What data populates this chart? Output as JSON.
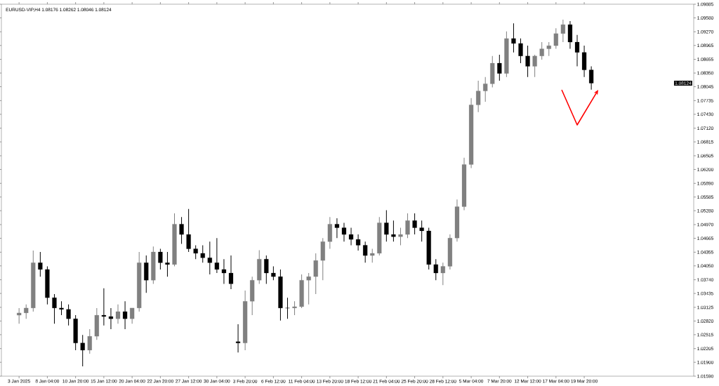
{
  "chart_data": {
    "type": "candlestick",
    "title": "EURUSD-VIP,H4  1.08176 1.08262 1.08046 1.08124",
    "categories": [
      "3 Jan 2025",
      null,
      null,
      null,
      "8 Jan 04:00",
      null,
      null,
      null,
      "10 Jan 20:00",
      null,
      null,
      null,
      "15 Jan 12:00",
      null,
      null,
      null,
      "20 Jan 04:00",
      null,
      null,
      null,
      "22 Jan 20:00",
      null,
      null,
      null,
      "27 Jan 12:00",
      null,
      null,
      null,
      "30 Jan 04:00",
      null,
      null,
      null,
      "3 Feb 20:00",
      null,
      null,
      null,
      "6 Feb 12:00",
      null,
      null,
      null,
      "11 Feb 04:00",
      null,
      null,
      null,
      "13 Feb 20:00",
      null,
      null,
      null,
      "18 Feb 12:00",
      null,
      null,
      null,
      "21 Feb 04:00",
      null,
      null,
      null,
      "25 Feb 20:00",
      null,
      null,
      null,
      "28 Feb 12:00",
      null,
      null,
      null,
      "5 Mar 04:00",
      null,
      null,
      null,
      "7 Mar 20:00",
      null,
      null,
      null,
      "12 Mar 12:00",
      null,
      null,
      null,
      "17 Mar 04:00",
      null,
      null,
      null,
      "19 Mar 20:00",
      null,
      null,
      null,
      null,
      null,
      null,
      null,
      null,
      null,
      null,
      null,
      null,
      null,
      null,
      null
    ],
    "ohlc": [
      [
        1.0295,
        1.0311,
        1.0276,
        1.03
      ],
      [
        1.03,
        1.0319,
        1.0287,
        1.0311
      ],
      [
        1.0311,
        1.0439,
        1.0303,
        1.0412
      ],
      [
        1.0412,
        1.0436,
        1.0381,
        1.0397
      ],
      [
        1.0397,
        1.0404,
        1.0319,
        1.0334
      ],
      [
        1.0334,
        1.0342,
        1.0276,
        1.0311
      ],
      [
        1.0311,
        1.0326,
        1.0295,
        1.0308
      ],
      [
        1.0308,
        1.0319,
        1.0272,
        1.0287
      ],
      [
        1.0287,
        1.0295,
        1.0217,
        1.0233
      ],
      [
        1.0233,
        1.0251,
        1.0181,
        1.0217
      ],
      [
        1.0217,
        1.0264,
        1.0209,
        1.0248
      ],
      [
        1.0248,
        1.0311,
        1.024,
        1.0295
      ],
      [
        1.0295,
        1.0355,
        1.0272,
        1.0292
      ],
      [
        1.0292,
        1.0311,
        1.0264,
        1.0287
      ],
      [
        1.0287,
        1.0319,
        1.0276,
        1.0303
      ],
      [
        1.0303,
        1.0326,
        1.0264,
        1.0287
      ],
      [
        1.0287,
        1.0311,
        1.0276,
        1.0311
      ],
      [
        1.0311,
        1.0436,
        1.0303,
        1.0412
      ],
      [
        1.0412,
        1.0428,
        1.0345,
        1.0373
      ],
      [
        1.0373,
        1.0448,
        1.0365,
        1.0436
      ],
      [
        1.0436,
        1.0443,
        1.0397,
        1.0412
      ],
      [
        1.0412,
        1.0436,
        1.0381,
        1.0408
      ],
      [
        1.0408,
        1.0522,
        1.0404,
        1.0498
      ],
      [
        1.0498,
        1.0514,
        1.0454,
        1.0475
      ],
      [
        1.0475,
        1.0532,
        1.0436,
        1.0443
      ],
      [
        1.0443,
        1.0451,
        1.042,
        1.0433
      ],
      [
        1.0433,
        1.0451,
        1.0412,
        1.0423
      ],
      [
        1.0423,
        1.0459,
        1.0386,
        1.0412
      ],
      [
        1.0412,
        1.0467,
        1.0389,
        1.0397
      ],
      [
        1.0397,
        1.042,
        1.0365,
        1.0389
      ],
      [
        1.0389,
        1.0428,
        1.0353,
        1.0365
      ],
      [
        1.0236,
        1.0275,
        1.0212,
        1.0233
      ],
      [
        1.0233,
        1.035,
        1.0217,
        1.0326
      ],
      [
        1.0326,
        1.0381,
        1.0295,
        1.0373
      ],
      [
        1.0373,
        1.044,
        1.0365,
        1.042
      ],
      [
        1.042,
        1.0428,
        1.0365,
        1.0389
      ],
      [
        1.0389,
        1.0404,
        1.0373,
        1.0381
      ],
      [
        1.0381,
        1.0397,
        1.0283,
        1.0311
      ],
      [
        1.0311,
        1.0334,
        1.0287,
        1.0311
      ],
      [
        1.0311,
        1.0326,
        1.0295,
        1.0314
      ],
      [
        1.0314,
        1.0386,
        1.0311,
        1.0373
      ],
      [
        1.0373,
        1.0389,
        1.0319,
        1.0381
      ],
      [
        1.0381,
        1.0433,
        1.0342,
        1.0417
      ],
      [
        1.0417,
        1.0467,
        1.0373,
        1.0459
      ],
      [
        1.0459,
        1.0514,
        1.0443,
        1.0498
      ],
      [
        1.0498,
        1.0511,
        1.0467,
        1.049
      ],
      [
        1.049,
        1.0501,
        1.0459,
        1.0475
      ],
      [
        1.0475,
        1.049,
        1.0451,
        1.0464
      ],
      [
        1.0464,
        1.0475,
        1.0439,
        1.0451
      ],
      [
        1.0451,
        1.0459,
        1.0412,
        1.0428
      ],
      [
        1.0428,
        1.0443,
        1.0412,
        1.0433
      ],
      [
        1.0433,
        1.0514,
        1.0428,
        1.0501
      ],
      [
        1.0501,
        1.0529,
        1.0459,
        1.0475
      ],
      [
        1.0475,
        1.0506,
        1.0459,
        1.047
      ],
      [
        1.047,
        1.049,
        1.0451,
        1.0475
      ],
      [
        1.0475,
        1.0522,
        1.0467,
        1.0506
      ],
      [
        1.0506,
        1.0522,
        1.0475,
        1.049
      ],
      [
        1.049,
        1.0506,
        1.0459,
        1.0483
      ],
      [
        1.0483,
        1.049,
        1.0397,
        1.0408
      ],
      [
        1.0408,
        1.042,
        1.0373,
        1.0389
      ],
      [
        1.0389,
        1.0412,
        1.0362,
        1.0404
      ],
      [
        1.0404,
        1.0475,
        1.0397,
        1.0467
      ],
      [
        1.0467,
        1.0553,
        1.0459,
        1.0537
      ],
      [
        1.0537,
        1.0646,
        1.0529,
        1.0631
      ],
      [
        1.0631,
        1.0779,
        1.0623,
        1.0764
      ],
      [
        1.0764,
        1.0818,
        1.0748,
        1.0795
      ],
      [
        1.0795,
        1.0826,
        1.0771,
        1.0811
      ],
      [
        1.0811,
        1.0873,
        1.0803,
        1.0857
      ],
      [
        1.0857,
        1.0876,
        1.0818,
        1.0834
      ],
      [
        1.0834,
        1.0928,
        1.0826,
        1.0912
      ],
      [
        1.0912,
        1.0946,
        1.0881,
        1.0901
      ],
      [
        1.0901,
        1.0912,
        1.0857,
        1.0873
      ],
      [
        1.0873,
        1.0896,
        1.0826,
        1.085
      ],
      [
        1.085,
        1.0876,
        1.0826,
        1.0873
      ],
      [
        1.0873,
        1.0904,
        1.0865,
        1.0889
      ],
      [
        1.0889,
        1.0904,
        1.0873,
        1.0896
      ],
      [
        1.0896,
        1.0935,
        1.0889,
        1.0923
      ],
      [
        1.0923,
        1.0954,
        1.0904,
        1.0943
      ],
      [
        1.0943,
        1.0951,
        1.0889,
        1.0904
      ],
      [
        1.0904,
        1.092,
        1.085,
        1.0881
      ],
      [
        1.0881,
        1.0896,
        1.0826,
        1.0842
      ],
      [
        1.0842,
        1.085,
        1.0798,
        1.08124
      ],
      null,
      null,
      null,
      null,
      null,
      null,
      null,
      null,
      null,
      null,
      null,
      null,
      null,
      null
    ],
    "colors": [
      "#808080",
      "#808080",
      "#808080",
      "#000000",
      "#000000",
      "#000000",
      "#000000",
      "#000000",
      "#000000",
      "#000000",
      "#808080",
      "#808080",
      "#000000",
      "#000000",
      "#808080",
      "#000000",
      "#808080",
      "#808080",
      "#000000",
      "#808080",
      "#000000",
      "#000000",
      "#808080",
      "#000000",
      "#000000",
      "#000000",
      "#000000",
      "#000000",
      "#000000",
      "#000000",
      "#000000",
      "#000000",
      "#808080",
      "#808080",
      "#808080",
      "#000000",
      "#000000",
      "#000000",
      "#000000",
      "#808080",
      "#808080",
      "#808080",
      "#808080",
      "#808080",
      "#808080",
      "#000000",
      "#000000",
      "#000000",
      "#000000",
      "#000000",
      "#808080",
      "#808080",
      "#000000",
      "#000000",
      "#808080",
      "#808080",
      "#000000",
      "#000000",
      "#000000",
      "#000000",
      "#808080",
      "#808080",
      "#808080",
      "#808080",
      "#808080",
      "#808080",
      "#808080",
      "#808080",
      "#000000",
      "#808080",
      "#000000",
      "#000000",
      "#000000",
      "#808080",
      "#808080",
      "#808080",
      "#808080",
      "#808080",
      "#000000",
      "#000000",
      "#000000",
      "#000000",
      null,
      null,
      null,
      null,
      null,
      null,
      null,
      null,
      null,
      null,
      null,
      null,
      null,
      null
    ],
    "ylim": [
      1.0159,
      1.09885
    ],
    "yticks": [
      {
        "value": 1.0159,
        "label": "1.01590"
      },
      {
        "value": 1.019,
        "label": "1.01900"
      },
      1.02205,
      1.02515,
      {
        "value": 1.0282,
        "label": "1.02820"
      },
      1.03125,
      1.03435,
      {
        "value": 1.0374,
        "label": "1.03740"
      },
      {
        "value": 1.0405,
        "label": "1.04050"
      },
      1.04355,
      1.04665,
      {
        "value": 1.0497,
        "label": "1.04970"
      },
      {
        "value": 1.0528,
        "label": "1.05280"
      },
      1.05585,
      {
        "value": 1.0589,
        "label": "1.05890"
      },
      {
        "value": 1.062,
        "label": "1.06200"
      },
      1.06505,
      1.06815,
      {
        "value": 1.0712,
        "label": "1.07120"
      },
      {
        "value": 1.0743,
        "label": "1.07430"
      },
      1.07735,
      1.08045,
      {
        "value": 1.0835,
        "label": "1.08350"
      },
      1.08655,
      1.08965,
      {
        "value": 1.0927,
        "label": "1.09270"
      },
      {
        "value": 1.0958,
        "label": "1.09580"
      },
      1.09885
    ],
    "annotations": [
      "1.08124"
    ]
  }
}
